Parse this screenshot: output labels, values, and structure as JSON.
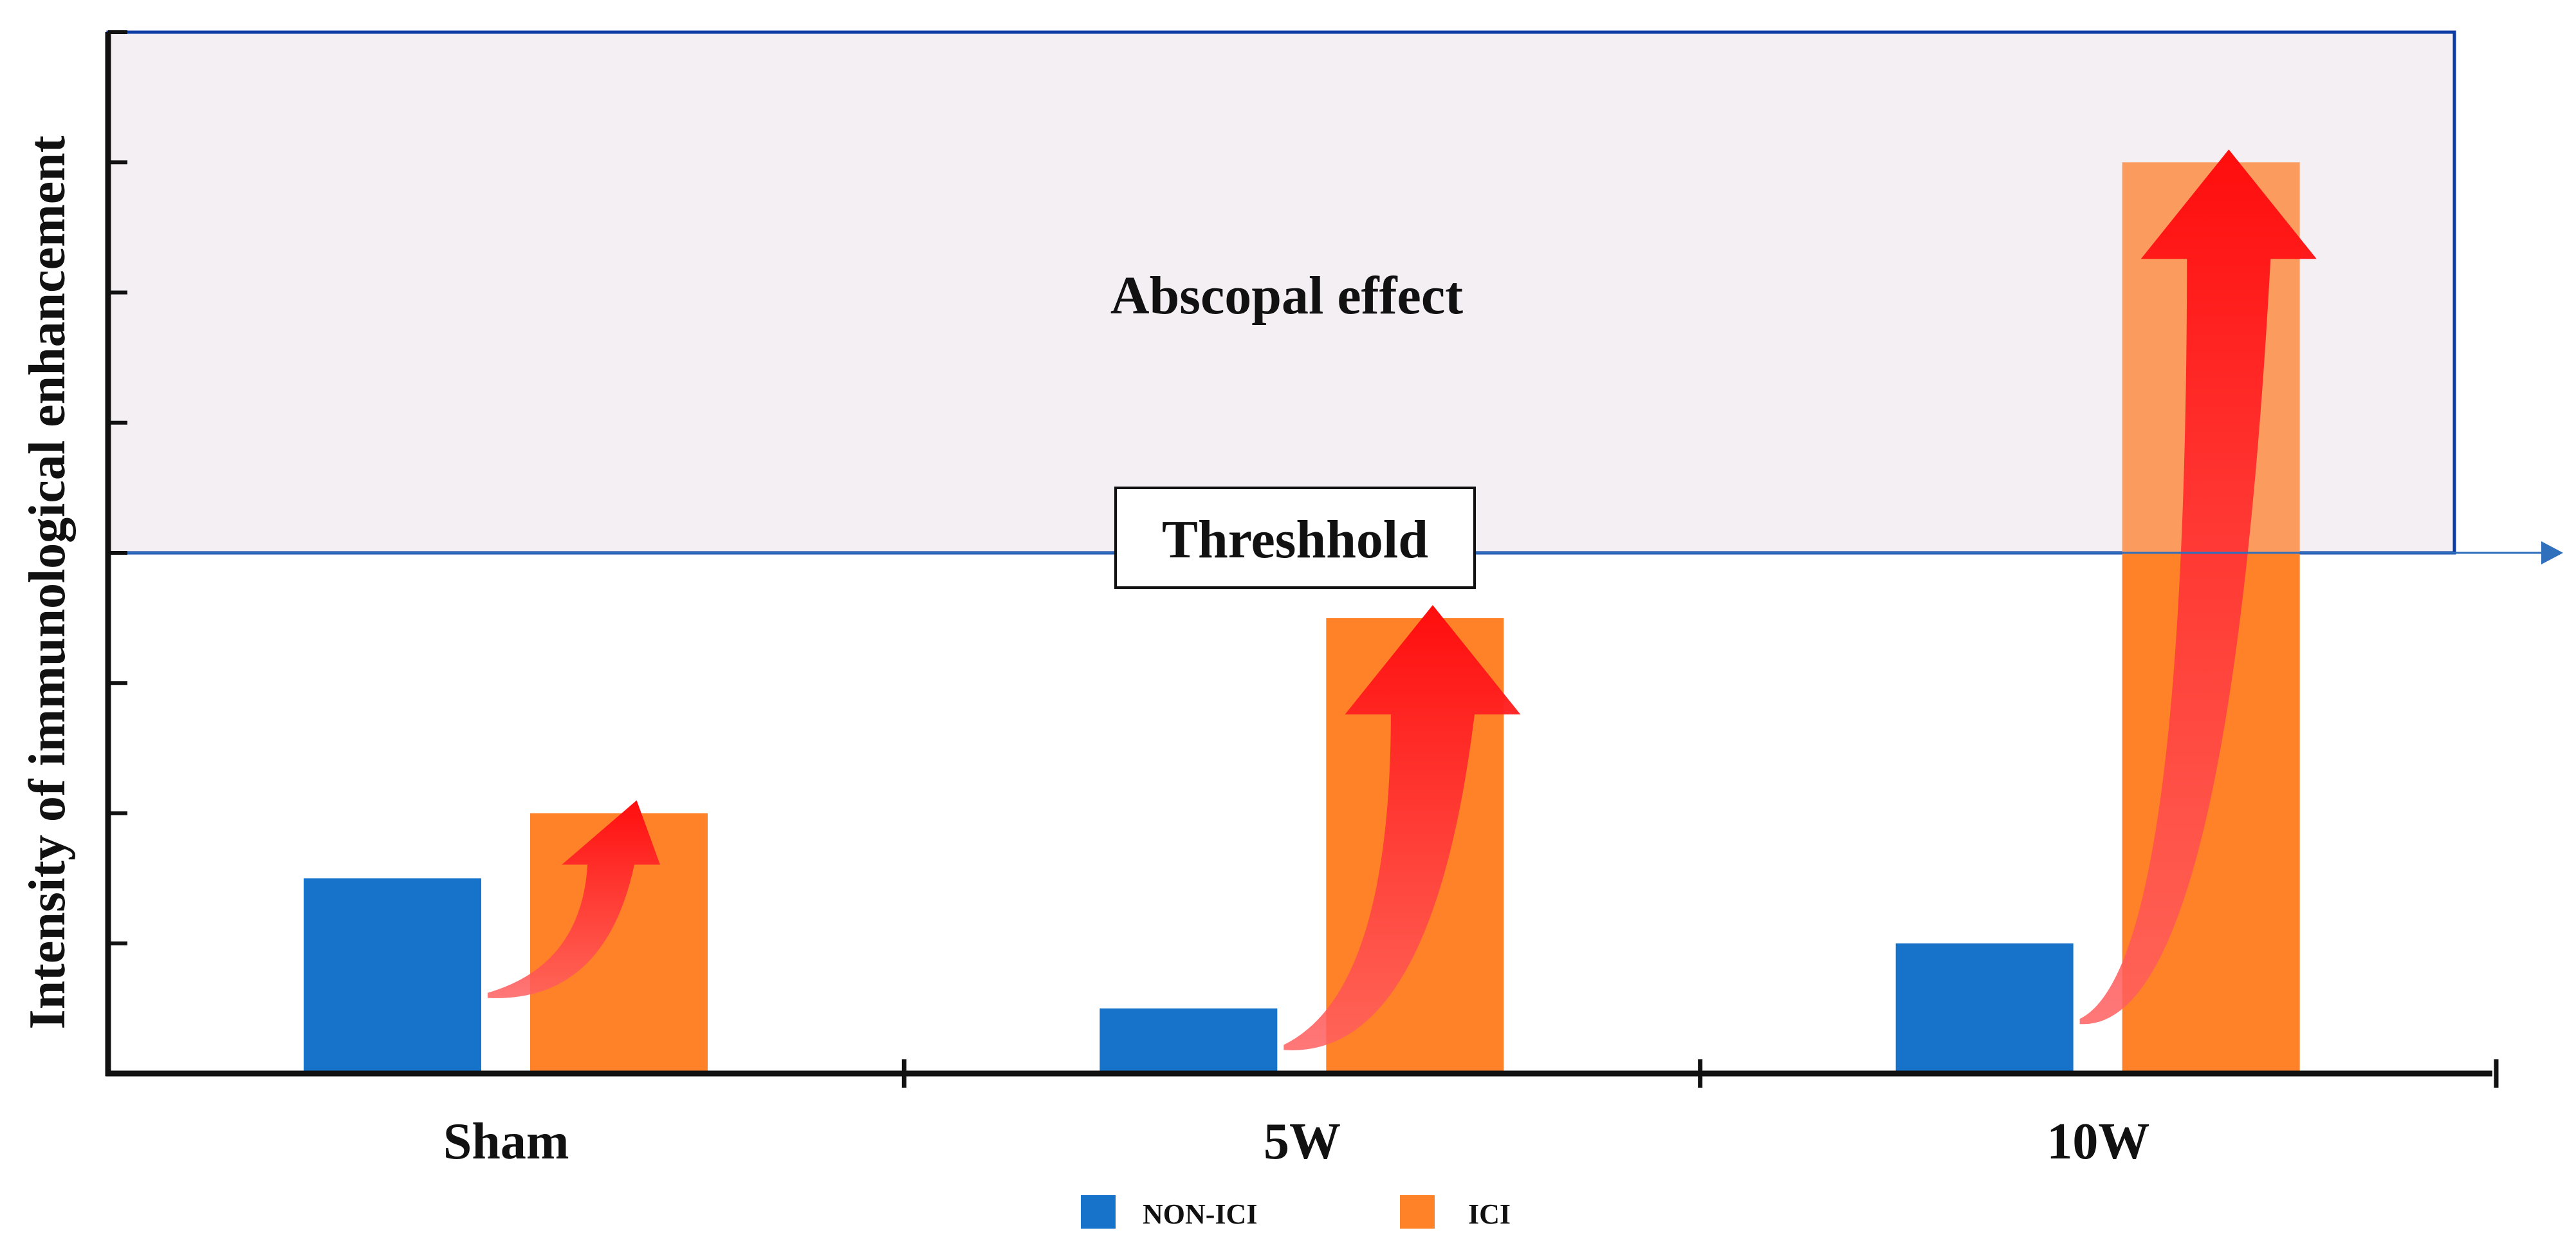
{
  "chart_data": {
    "type": "bar",
    "title": "",
    "ylabel": "Intensity of immunological enhancement",
    "xlabel": "",
    "categories": [
      "Sham",
      "5W",
      "10W"
    ],
    "series": [
      {
        "name": "NON-ICI",
        "values": [
          1.5,
          0.5,
          1.0
        ]
      },
      {
        "name": "ICI",
        "values": [
          2.0,
          3.5,
          7.0
        ]
      }
    ],
    "ylim": [
      0,
      8
    ],
    "y_tick_count": 8,
    "threshold": {
      "value": 4,
      "label": "Threshhold"
    },
    "region": {
      "label": "Abscopal effect",
      "from": 4,
      "to": 8
    },
    "colors": {
      "NON-ICI": "#1773CA",
      "ICI": "#FF8128",
      "ICI_above_threshold": "#FB9B5E",
      "region_fill": "#F3EFF2",
      "region_border": "#0D3CA4",
      "threshold_line": "#2F6FBC",
      "arrow": "#FF1111",
      "axis": "#111111"
    },
    "legend": {
      "position": "bottom-center",
      "items": [
        "NON-ICI",
        "ICI"
      ]
    }
  }
}
